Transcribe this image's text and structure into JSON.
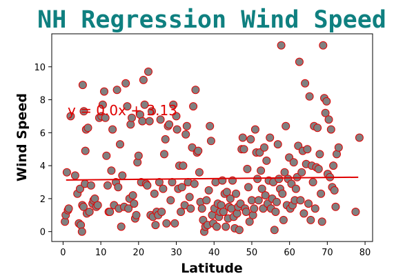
{
  "chart_data": {
    "type": "scatter",
    "title": "NH Regression Wind Speed",
    "xlabel": "Latitude",
    "ylabel": "Wind Speed",
    "xlim": [
      -3,
      82
    ],
    "ylim": [
      -0.6,
      12
    ],
    "xticks": [
      0,
      10,
      20,
      30,
      40,
      50,
      60,
      70,
      80
    ],
    "yticks": [
      0,
      2,
      4,
      6,
      8,
      10
    ],
    "grid": false,
    "regression": {
      "equation": "y = 0.0x + 3.13",
      "x": [
        0.8,
        78.2
      ],
      "y": [
        3.13,
        3.3
      ]
    },
    "colors": {
      "title": "#0f8080",
      "point_fill": "#808080",
      "point_edge": "#e00000",
      "regression_line": "#e00000",
      "equation": "#e00000"
    },
    "points": [
      [
        0.5,
        0.6
      ],
      [
        0.7,
        1.0
      ],
      [
        1.0,
        3.6
      ],
      [
        1.3,
        1.3
      ],
      [
        1.5,
        1.4
      ],
      [
        2.0,
        7.0
      ],
      [
        3.2,
        3.4
      ],
      [
        3.8,
        2.3
      ],
      [
        4.2,
        0.5
      ],
      [
        4.5,
        2.6
      ],
      [
        4.7,
        0.4
      ],
      [
        5.0,
        0.0
      ],
      [
        5.1,
        1.6
      ],
      [
        5.2,
        8.9
      ],
      [
        5.4,
        1.5
      ],
      [
        5.5,
        7.3
      ],
      [
        5.8,
        2.9
      ],
      [
        5.9,
        4.9
      ],
      [
        6.1,
        6.2
      ],
      [
        6.3,
        1.1
      ],
      [
        6.6,
        6.3
      ],
      [
        7.0,
        1.2
      ],
      [
        7.4,
        2.8
      ],
      [
        7.8,
        1.7
      ],
      [
        8.1,
        1.9
      ],
      [
        8.4,
        2.0
      ],
      [
        8.8,
        1.5
      ],
      [
        9.2,
        1.6
      ],
      [
        9.6,
        6.9
      ],
      [
        10.2,
        7.0
      ],
      [
        10.5,
        7.7
      ],
      [
        10.9,
        8.5
      ],
      [
        11.2,
        6.9
      ],
      [
        11.5,
        4.6
      ],
      [
        11.8,
        2.8
      ],
      [
        12.1,
        1.2
      ],
      [
        12.4,
        1.2
      ],
      [
        12.8,
        3.7
      ],
      [
        13.1,
        6.2
      ],
      [
        13.5,
        1.6
      ],
      [
        14.0,
        3.0
      ],
      [
        14.3,
        8.6
      ],
      [
        14.6,
        2.7
      ],
      [
        14.8,
        1.4
      ],
      [
        15.1,
        5.3
      ],
      [
        15.4,
        0.3
      ],
      [
        15.7,
        3.4
      ],
      [
        16.2,
        1.5
      ],
      [
        16.6,
        9.0
      ],
      [
        17.0,
        7.6
      ],
      [
        17.3,
        1.4
      ],
      [
        17.6,
        2.0
      ],
      [
        17.9,
        6.5
      ],
      [
        18.2,
        6.9
      ],
      [
        18.5,
        2.2
      ],
      [
        18.8,
        1.7
      ],
      [
        19.1,
        0.8
      ],
      [
        19.4,
        1.0
      ],
      [
        19.7,
        4.2
      ],
      [
        20.0,
        4.6
      ],
      [
        20.4,
        7.1
      ],
      [
        20.7,
        3.0
      ],
      [
        21.0,
        6.7
      ],
      [
        21.3,
        9.2
      ],
      [
        21.6,
        7.7
      ],
      [
        22.0,
        2.9
      ],
      [
        22.3,
        2.8
      ],
      [
        22.6,
        9.7
      ],
      [
        22.9,
        6.7
      ],
      [
        23.2,
        1.0
      ],
      [
        23.5,
        7.3
      ],
      [
        23.8,
        0.9
      ],
      [
        24.2,
        2.3
      ],
      [
        24.5,
        0.4
      ],
      [
        24.8,
        1.2
      ],
      [
        25.2,
        1.0
      ],
      [
        25.5,
        3.0
      ],
      [
        25.8,
        6.8
      ],
      [
        26.1,
        1.2
      ],
      [
        26.5,
        2.6
      ],
      [
        26.8,
        4.7
      ],
      [
        27.1,
        5.6
      ],
      [
        27.4,
        0.5
      ],
      [
        27.8,
        6.4
      ],
      [
        28.1,
        6.5
      ],
      [
        28.5,
        1.9
      ],
      [
        28.9,
        3.0
      ],
      [
        29.2,
        7.7
      ],
      [
        29.6,
        0.5
      ],
      [
        30.0,
        7.0
      ],
      [
        30.2,
        6.2
      ],
      [
        30.5,
        2.6
      ],
      [
        30.8,
        4.0
      ],
      [
        31.2,
        1.2
      ],
      [
        31.5,
        2.7
      ],
      [
        31.8,
        4.0
      ],
      [
        32.2,
        1.6
      ],
      [
        32.5,
        5.9
      ],
      [
        32.8,
        6.4
      ],
      [
        33.1,
        3.0
      ],
      [
        33.5,
        2.1
      ],
      [
        33.8,
        1.4
      ],
      [
        34.2,
        5.1
      ],
      [
        34.5,
        7.6
      ],
      [
        34.8,
        2.9
      ],
      [
        35.1,
        8.6
      ],
      [
        35.5,
        4.8
      ],
      [
        35.8,
        4.9
      ],
      [
        36.1,
        3.6
      ],
      [
        36.4,
        1.8
      ],
      [
        36.8,
        1.4
      ],
      [
        37.1,
        0.7
      ],
      [
        37.4,
        0.0
      ],
      [
        37.7,
        0.3
      ],
      [
        38.0,
        1.9
      ],
      [
        38.3,
        0.4
      ],
      [
        38.6,
        2.5
      ],
      [
        38.9,
        6.4
      ],
      [
        39.2,
        5.5
      ],
      [
        39.5,
        1.0
      ],
      [
        39.8,
        0.5
      ],
      [
        40.1,
        1.4
      ],
      [
        40.4,
        3.0
      ],
      [
        40.7,
        0.3
      ],
      [
        41.0,
        1.7
      ],
      [
        41.3,
        0.9
      ],
      [
        41.6,
        1.2
      ],
      [
        41.9,
        1.6
      ],
      [
        42.2,
        3.1
      ],
      [
        42.5,
        1.2
      ],
      [
        42.8,
        2.3
      ],
      [
        43.1,
        0.3
      ],
      [
        43.4,
        2.4
      ],
      [
        43.7,
        0.8
      ],
      [
        44.0,
        1.5
      ],
      [
        44.3,
        2.0
      ],
      [
        44.6,
        1.4
      ],
      [
        44.9,
        3.1
      ],
      [
        45.2,
        0.9
      ],
      [
        45.5,
        0.2
      ],
      [
        45.8,
        2.3
      ],
      [
        46.1,
        1.1
      ],
      [
        46.4,
        1.5
      ],
      [
        46.7,
        0.1
      ],
      [
        47.0,
        1.7
      ],
      [
        47.3,
        5.0
      ],
      [
        47.6,
        5.7
      ],
      [
        47.9,
        5.0
      ],
      [
        48.2,
        1.4
      ],
      [
        48.5,
        1.2
      ],
      [
        48.8,
        3.8
      ],
      [
        49.1,
        2.7
      ],
      [
        49.4,
        0.6
      ],
      [
        49.7,
        5.6
      ],
      [
        50.0,
        1.9
      ],
      [
        50.3,
        1.0
      ],
      [
        50.6,
        1.4
      ],
      [
        50.9,
        6.2
      ],
      [
        51.2,
        4.8
      ],
      [
        51.5,
        3.2
      ],
      [
        51.8,
        1.9
      ],
      [
        52.1,
        4.8
      ],
      [
        52.4,
        3.7
      ],
      [
        52.7,
        2.6
      ],
      [
        53.0,
        1.4
      ],
      [
        53.3,
        5.1
      ],
      [
        53.6,
        2.2
      ],
      [
        53.9,
        4.3
      ],
      [
        54.2,
        1.7
      ],
      [
        54.5,
        3.1
      ],
      [
        54.8,
        5.7
      ],
      [
        55.1,
        1.4
      ],
      [
        55.4,
        2.0
      ],
      [
        55.7,
        3.0
      ],
      [
        56.0,
        0.1
      ],
      [
        56.3,
        1.2
      ],
      [
        56.6,
        1.8
      ],
      [
        56.9,
        5.3
      ],
      [
        57.2,
        3.2
      ],
      [
        57.5,
        2.6
      ],
      [
        57.8,
        11.3
      ],
      [
        58.1,
        2.3
      ],
      [
        58.4,
        0.7
      ],
      [
        58.7,
        3.6
      ],
      [
        59.0,
        6.4
      ],
      [
        59.3,
        1.6
      ],
      [
        59.6,
        3.2
      ],
      [
        59.9,
        4.5
      ],
      [
        60.2,
        1.4
      ],
      [
        60.5,
        2.9
      ],
      [
        60.8,
        1.6
      ],
      [
        61.1,
        4.2
      ],
      [
        61.4,
        1.9
      ],
      [
        61.7,
        2.6
      ],
      [
        62.0,
        3.3
      ],
      [
        62.3,
        5.2
      ],
      [
        62.6,
        10.3
      ],
      [
        62.9,
        1.9
      ],
      [
        63.2,
        3.6
      ],
      [
        63.5,
        4.9
      ],
      [
        63.8,
        1.1
      ],
      [
        64.1,
        9.0
      ],
      [
        64.4,
        4.1
      ],
      [
        64.7,
        5.0
      ],
      [
        65.0,
        1.7
      ],
      [
        65.3,
        8.2
      ],
      [
        65.6,
        0.7
      ],
      [
        65.9,
        4.0
      ],
      [
        66.2,
        3.0
      ],
      [
        66.5,
        6.4
      ],
      [
        66.8,
        1.4
      ],
      [
        67.1,
        3.9
      ],
      [
        67.4,
        6.3
      ],
      [
        67.7,
        3.8
      ],
      [
        68.0,
        4.7
      ],
      [
        68.3,
        2.3
      ],
      [
        68.6,
        0.6
      ],
      [
        68.9,
        11.3
      ],
      [
        69.2,
        8.1
      ],
      [
        69.5,
        7.2
      ],
      [
        69.8,
        7.9
      ],
      [
        70.1,
        3.5
      ],
      [
        70.4,
        6.8
      ],
      [
        70.7,
        3.3
      ],
      [
        71.0,
        6.2
      ],
      [
        71.3,
        2.7
      ],
      [
        71.6,
        4.0
      ],
      [
        71.9,
        2.5
      ],
      [
        72.2,
        1.5
      ],
      [
        72.5,
        4.7
      ],
      [
        73.0,
        5.1
      ],
      [
        77.5,
        1.2
      ],
      [
        78.5,
        5.7
      ]
    ]
  }
}
